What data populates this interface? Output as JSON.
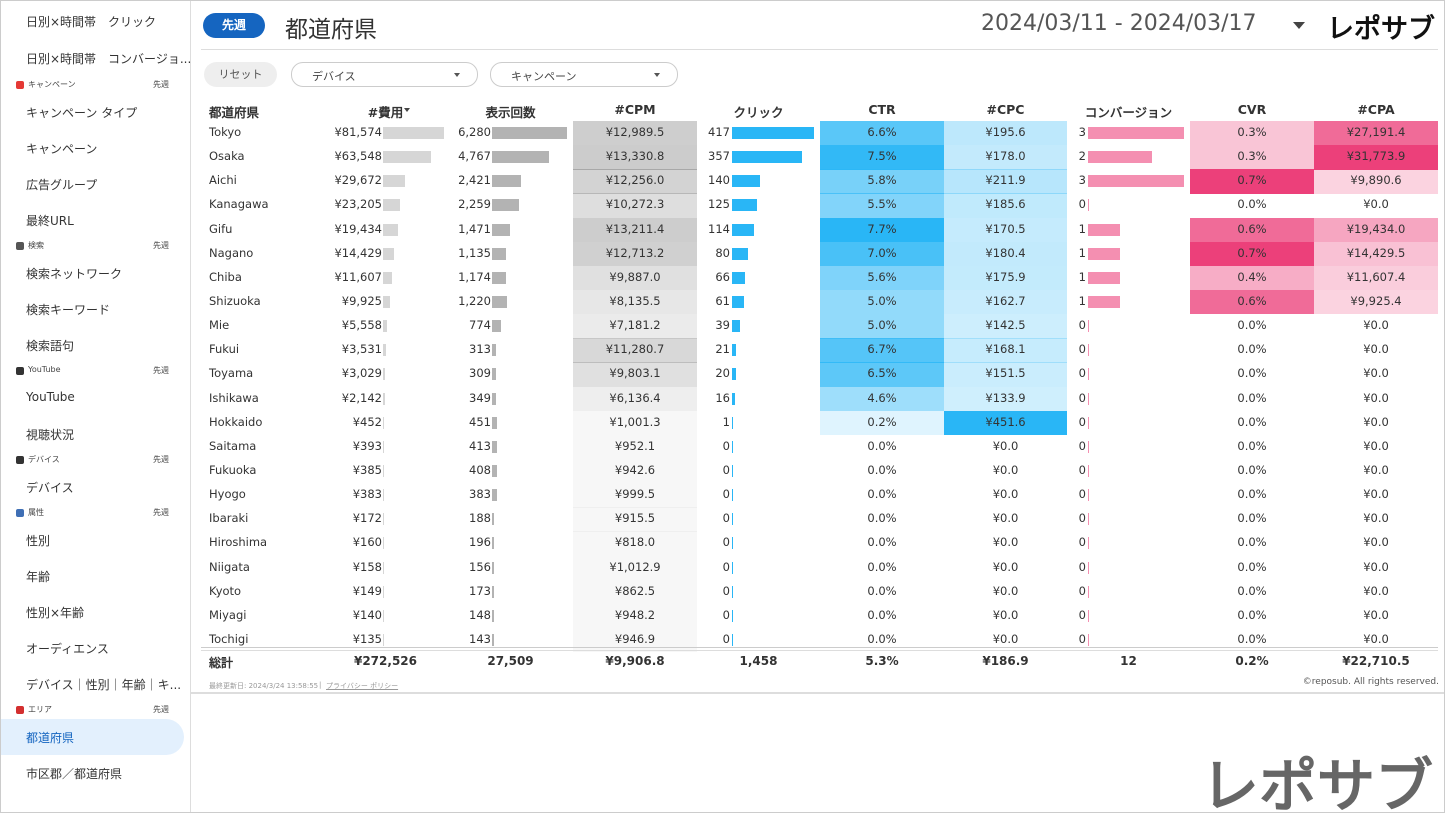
{
  "header": {
    "badge": "先週",
    "title": "都道府県",
    "date_range": "2024/03/11 - 2024/03/17",
    "logo": "レポサブ"
  },
  "sidebar": {
    "top_items": [
      "日別×時間帯　クリック",
      "日別×時間帯　コンバージョ..."
    ],
    "sections": [
      {
        "title": "キャンペーン",
        "badge": "先週",
        "items": [
          "キャンペーン タイプ",
          "キャンペーン",
          "広告グループ",
          "最終URL"
        ]
      },
      {
        "title": "検索",
        "badge": "先週",
        "items": [
          "検索ネットワーク",
          "検索キーワード",
          "検索語句"
        ]
      },
      {
        "title": "YouTube",
        "badge": "先週",
        "items": [
          "YouTube",
          "視聴状況"
        ]
      },
      {
        "title": "デバイス",
        "badge": "先週",
        "items": [
          "デバイス"
        ]
      },
      {
        "title": "属性",
        "badge": "先週",
        "items": [
          "性別",
          "年齢",
          "性別×年齢",
          "オーディエンス",
          "デバイス｜性別｜年齢｜キ..."
        ]
      },
      {
        "title": "エリア",
        "badge": "先週",
        "items": [
          "都道府県",
          "市区郡／都道府県"
        ]
      }
    ]
  },
  "filters": {
    "reset": "リセット",
    "dropdowns": [
      "デバイス",
      "キャンペーン"
    ]
  },
  "table": {
    "columns": [
      "都道府県",
      "#費用",
      "表示回数",
      "#CPM",
      "クリック",
      "CTR",
      "#CPC",
      "コンバージョン",
      "CVR",
      "#CPA"
    ],
    "rows": [
      [
        "Tokyo",
        "¥81,574",
        "6,280",
        "¥12,989.5",
        "417",
        "6.6%",
        "¥195.6",
        "3",
        "0.3%",
        "¥27,191.4"
      ],
      [
        "Osaka",
        "¥63,548",
        "4,767",
        "¥13,330.8",
        "357",
        "7.5%",
        "¥178.0",
        "2",
        "0.3%",
        "¥31,773.9"
      ],
      [
        "Aichi",
        "¥29,672",
        "2,421",
        "¥12,256.0",
        "140",
        "5.8%",
        "¥211.9",
        "3",
        "0.7%",
        "¥9,890.6"
      ],
      [
        "Kanagawa",
        "¥23,205",
        "2,259",
        "¥10,272.3",
        "125",
        "5.5%",
        "¥185.6",
        "0",
        "0.0%",
        "¥0.0"
      ],
      [
        "Gifu",
        "¥19,434",
        "1,471",
        "¥13,211.4",
        "114",
        "7.7%",
        "¥170.5",
        "1",
        "0.6%",
        "¥19,434.0"
      ],
      [
        "Nagano",
        "¥14,429",
        "1,135",
        "¥12,713.2",
        "80",
        "7.0%",
        "¥180.4",
        "1",
        "0.7%",
        "¥14,429.5"
      ],
      [
        "Chiba",
        "¥11,607",
        "1,174",
        "¥9,887.0",
        "66",
        "5.6%",
        "¥175.9",
        "1",
        "0.4%",
        "¥11,607.4"
      ],
      [
        "Shizuoka",
        "¥9,925",
        "1,220",
        "¥8,135.5",
        "61",
        "5.0%",
        "¥162.7",
        "1",
        "0.6%",
        "¥9,925.4"
      ],
      [
        "Mie",
        "¥5,558",
        "774",
        "¥7,181.2",
        "39",
        "5.0%",
        "¥142.5",
        "0",
        "0.0%",
        "¥0.0"
      ],
      [
        "Fukui",
        "¥3,531",
        "313",
        "¥11,280.7",
        "21",
        "6.7%",
        "¥168.1",
        "0",
        "0.0%",
        "¥0.0"
      ],
      [
        "Toyama",
        "¥3,029",
        "309",
        "¥9,803.1",
        "20",
        "6.5%",
        "¥151.5",
        "0",
        "0.0%",
        "¥0.0"
      ],
      [
        "Ishikawa",
        "¥2,142",
        "349",
        "¥6,136.4",
        "16",
        "4.6%",
        "¥133.9",
        "0",
        "0.0%",
        "¥0.0"
      ],
      [
        "Hokkaido",
        "¥452",
        "451",
        "¥1,001.3",
        "1",
        "0.2%",
        "¥451.6",
        "0",
        "0.0%",
        "¥0.0"
      ],
      [
        "Saitama",
        "¥393",
        "413",
        "¥952.1",
        "0",
        "0.0%",
        "¥0.0",
        "0",
        "0.0%",
        "¥0.0"
      ],
      [
        "Fukuoka",
        "¥385",
        "408",
        "¥942.6",
        "0",
        "0.0%",
        "¥0.0",
        "0",
        "0.0%",
        "¥0.0"
      ],
      [
        "Hyogo",
        "¥383",
        "383",
        "¥999.5",
        "0",
        "0.0%",
        "¥0.0",
        "0",
        "0.0%",
        "¥0.0"
      ],
      [
        "Ibaraki",
        "¥172",
        "188",
        "¥915.5",
        "0",
        "0.0%",
        "¥0.0",
        "0",
        "0.0%",
        "¥0.0"
      ],
      [
        "Hiroshima",
        "¥160",
        "196",
        "¥818.0",
        "0",
        "0.0%",
        "¥0.0",
        "0",
        "0.0%",
        "¥0.0"
      ],
      [
        "Niigata",
        "¥158",
        "156",
        "¥1,012.9",
        "0",
        "0.0%",
        "¥0.0",
        "0",
        "0.0%",
        "¥0.0"
      ],
      [
        "Kyoto",
        "¥149",
        "173",
        "¥862.5",
        "0",
        "0.0%",
        "¥0.0",
        "0",
        "0.0%",
        "¥0.0"
      ],
      [
        "Miyagi",
        "¥140",
        "148",
        "¥948.2",
        "0",
        "0.0%",
        "¥0.0",
        "0",
        "0.0%",
        "¥0.0"
      ],
      [
        "Tochigi",
        "¥135",
        "143",
        "¥946.9",
        "0",
        "0.0%",
        "¥0.0",
        "0",
        "0.0%",
        "¥0.0"
      ]
    ],
    "total": [
      "総計",
      "¥272,526",
      "27,509",
      "¥9,906.8",
      "1,458",
      "5.3%",
      "¥186.9",
      "12",
      "0.2%",
      "¥22,710.5"
    ]
  },
  "footer": {
    "updated": "最終更新日: 2024/3/24 13:58:55",
    "separator": "|",
    "privacy": "プライバシー ポリシー",
    "copyright": "©reposub. All rights reserved."
  }
}
